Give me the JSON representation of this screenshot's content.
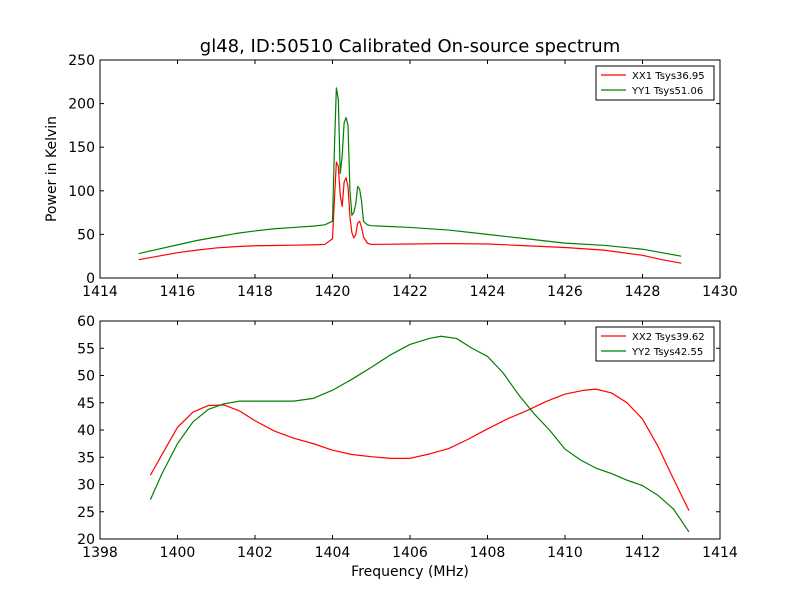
{
  "chart_data": [
    {
      "type": "line",
      "title": "gl48, ID:50510 Calibrated On-source spectrum",
      "xlabel": "",
      "ylabel": "Power in Kelvin",
      "xlim": [
        1414,
        1430
      ],
      "ylim": [
        0,
        250
      ],
      "xticks": [
        1414,
        1416,
        1418,
        1420,
        1422,
        1424,
        1426,
        1428,
        1430
      ],
      "yticks": [
        0,
        50,
        100,
        150,
        200,
        250
      ],
      "grid": false,
      "legend_position": "top-right",
      "series": [
        {
          "name": "XX1 Tsys36.95",
          "color": "#ff0000",
          "points": [
            [
              1415.0,
              21
            ],
            [
              1415.5,
              25
            ],
            [
              1416.0,
              29
            ],
            [
              1416.5,
              32
            ],
            [
              1417.0,
              34.5
            ],
            [
              1417.5,
              36
            ],
            [
              1418.0,
              37
            ],
            [
              1418.5,
              37.3
            ],
            [
              1419.0,
              37.6
            ],
            [
              1419.5,
              38
            ],
            [
              1419.8,
              38.5
            ],
            [
              1420.0,
              45
            ],
            [
              1420.05,
              90
            ],
            [
              1420.1,
              133
            ],
            [
              1420.15,
              128
            ],
            [
              1420.2,
              95
            ],
            [
              1420.25,
              82
            ],
            [
              1420.3,
              110
            ],
            [
              1420.35,
              115
            ],
            [
              1420.4,
              105
            ],
            [
              1420.45,
              70
            ],
            [
              1420.5,
              52
            ],
            [
              1420.55,
              46
            ],
            [
              1420.6,
              50
            ],
            [
              1420.65,
              63
            ],
            [
              1420.7,
              65
            ],
            [
              1420.75,
              58
            ],
            [
              1420.8,
              47
            ],
            [
              1420.9,
              40
            ],
            [
              1421.0,
              38.5
            ],
            [
              1422.0,
              39
            ],
            [
              1423.0,
              39.5
            ],
            [
              1424.0,
              39
            ],
            [
              1425.0,
              37
            ],
            [
              1426.0,
              35
            ],
            [
              1427.0,
              32
            ],
            [
              1428.0,
              26
            ],
            [
              1428.5,
              21
            ],
            [
              1429.0,
              17
            ]
          ]
        },
        {
          "name": "YY1 Tsys51.06",
          "color": "#008000",
          "points": [
            [
              1415.0,
              28
            ],
            [
              1415.5,
              33
            ],
            [
              1416.0,
              38
            ],
            [
              1416.5,
              43
            ],
            [
              1417.0,
              47
            ],
            [
              1417.5,
              51
            ],
            [
              1418.0,
              54
            ],
            [
              1418.5,
              56.5
            ],
            [
              1419.0,
              58
            ],
            [
              1419.5,
              59.5
            ],
            [
              1419.8,
              61
            ],
            [
              1420.0,
              65
            ],
            [
              1420.05,
              150
            ],
            [
              1420.1,
              218
            ],
            [
              1420.15,
              205
            ],
            [
              1420.2,
              120
            ],
            [
              1420.25,
              140
            ],
            [
              1420.3,
              178
            ],
            [
              1420.35,
              184
            ],
            [
              1420.4,
              175
            ],
            [
              1420.45,
              100
            ],
            [
              1420.5,
              72
            ],
            [
              1420.55,
              75
            ],
            [
              1420.6,
              85
            ],
            [
              1420.65,
              105
            ],
            [
              1420.7,
              102
            ],
            [
              1420.75,
              88
            ],
            [
              1420.8,
              65
            ],
            [
              1420.9,
              61
            ],
            [
              1421.0,
              60
            ],
            [
              1422.0,
              58
            ],
            [
              1423.0,
              55
            ],
            [
              1424.0,
              50
            ],
            [
              1425.0,
              45
            ],
            [
              1426.0,
              40
            ],
            [
              1427.0,
              37.5
            ],
            [
              1428.0,
              33
            ],
            [
              1428.5,
              29
            ],
            [
              1429.0,
              25
            ]
          ]
        }
      ]
    },
    {
      "type": "line",
      "title": "",
      "xlabel": "Frequency (MHz)",
      "ylabel": "",
      "xlim": [
        1398,
        1414
      ],
      "ylim": [
        20,
        60
      ],
      "xticks": [
        1398,
        1400,
        1402,
        1404,
        1406,
        1408,
        1410,
        1412,
        1414
      ],
      "yticks": [
        20,
        25,
        30,
        35,
        40,
        45,
        50,
        55,
        60
      ],
      "grid": false,
      "legend_position": "top-right",
      "series": [
        {
          "name": "XX2 Tsys39.62",
          "color": "#ff0000",
          "points": [
            [
              1399.3,
              31.7
            ],
            [
              1399.6,
              35.5
            ],
            [
              1400.0,
              40.5
            ],
            [
              1400.4,
              43.3
            ],
            [
              1400.8,
              44.5
            ],
            [
              1401.2,
              44.6
            ],
            [
              1401.6,
              43.5
            ],
            [
              1402.0,
              41.7
            ],
            [
              1402.5,
              39.8
            ],
            [
              1403.0,
              38.5
            ],
            [
              1403.5,
              37.5
            ],
            [
              1404.0,
              36.3
            ],
            [
              1404.5,
              35.5
            ],
            [
              1405.0,
              35.1
            ],
            [
              1405.5,
              34.8
            ],
            [
              1406.0,
              34.8
            ],
            [
              1406.5,
              35.6
            ],
            [
              1407.0,
              36.6
            ],
            [
              1407.5,
              38.3
            ],
            [
              1408.0,
              40.2
            ],
            [
              1408.5,
              42
            ],
            [
              1409.0,
              43.5
            ],
            [
              1409.5,
              45.2
            ],
            [
              1410.0,
              46.6
            ],
            [
              1410.5,
              47.3
            ],
            [
              1410.8,
              47.5
            ],
            [
              1411.2,
              46.8
            ],
            [
              1411.6,
              45
            ],
            [
              1412.0,
              42
            ],
            [
              1412.4,
              37
            ],
            [
              1412.8,
              31
            ],
            [
              1413.2,
              25.2
            ]
          ]
        },
        {
          "name": "YY2 Tsys42.55",
          "color": "#008000",
          "points": [
            [
              1399.3,
              27.2
            ],
            [
              1399.6,
              32
            ],
            [
              1400.0,
              37.5
            ],
            [
              1400.4,
              41.5
            ],
            [
              1400.8,
              43.8
            ],
            [
              1401.2,
              44.8
            ],
            [
              1401.6,
              45.3
            ],
            [
              1402.0,
              45.3
            ],
            [
              1402.5,
              45.3
            ],
            [
              1403.0,
              45.3
            ],
            [
              1403.5,
              45.8
            ],
            [
              1404.0,
              47.3
            ],
            [
              1404.5,
              49.3
            ],
            [
              1405.0,
              51.5
            ],
            [
              1405.5,
              53.8
            ],
            [
              1406.0,
              55.7
            ],
            [
              1406.5,
              56.8
            ],
            [
              1406.8,
              57.2
            ],
            [
              1407.2,
              56.8
            ],
            [
              1407.6,
              55
            ],
            [
              1408.0,
              53.5
            ],
            [
              1408.4,
              50.5
            ],
            [
              1408.8,
              46.5
            ],
            [
              1409.2,
              43
            ],
            [
              1409.6,
              40
            ],
            [
              1410.0,
              36.5
            ],
            [
              1410.4,
              34.5
            ],
            [
              1410.8,
              33
            ],
            [
              1411.2,
              32
            ],
            [
              1411.6,
              30.8
            ],
            [
              1412.0,
              29.8
            ],
            [
              1412.4,
              28
            ],
            [
              1412.8,
              25.5
            ],
            [
              1413.2,
              21.3
            ]
          ]
        }
      ]
    }
  ]
}
